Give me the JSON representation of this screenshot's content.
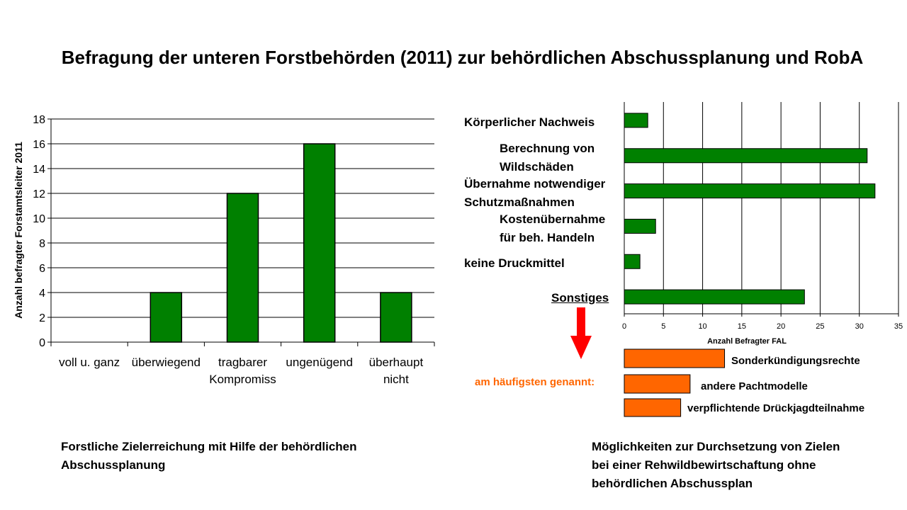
{
  "title": "Befragung der unteren Forstbehörden (2011) zur behördlichen Abschussplanung und RobA",
  "chart_data": [
    {
      "type": "bar",
      "title": "",
      "ylabel": "Anzahl befragter Forstamtsleiter 2011",
      "xlabel": "",
      "ylim": [
        0,
        18
      ],
      "yticks": [
        "0",
        "2",
        "4",
        "6",
        "8",
        "10",
        "12",
        "14",
        "16",
        "18"
      ],
      "categories": [
        [
          "voll u. ganz"
        ],
        [
          "überwiegend"
        ],
        [
          "tragbarer",
          "Kompromiss"
        ],
        [
          "ungenügend"
        ],
        [
          "überhaupt",
          "nicht"
        ]
      ],
      "values": [
        0,
        4,
        12,
        16,
        4
      ],
      "grid": true,
      "color": "#008000",
      "caption": [
        "Forstliche Zielerreichung  mit Hilfe der behördlichen",
        "Abschussplanung"
      ]
    },
    {
      "type": "bar",
      "orientation": "horizontal",
      "title": "",
      "xlabel": "Anzahl Befragter FAL",
      "xlim": [
        0,
        35
      ],
      "xticks": [
        "0",
        "5",
        "10",
        "15",
        "20",
        "25",
        "30",
        "35"
      ],
      "categories": [
        [
          "Körperlicher  Nachweis"
        ],
        [
          "Berechnung von",
          "Wildschäden"
        ],
        [
          "Übernahme  notwendiger",
          "Schutzmaßnahmen"
        ],
        [
          "Kostenübernahme",
          "für beh. Handeln"
        ],
        [
          "keine Druckmittel"
        ],
        [
          "Sonstiges"
        ]
      ],
      "values": [
        3,
        31,
        32,
        4,
        2,
        23
      ],
      "grid": true,
      "color": "#008000",
      "breakdown": {
        "label": "am häufigsten genannt:",
        "color": "#ff6600",
        "categories": [
          "Sonderkündigungsrechte",
          "andere Pachtmodelle",
          "verpflichtende Drückjagdteilnahme"
        ],
        "values": [
          12.8,
          8.4,
          7.2
        ]
      },
      "caption": [
        "Möglichkeiten  zur Durchsetzung  von Zielen",
        "bei einer Rehwildbewirtschaftung  ohne",
        "behördlichen  Abschussplan"
      ]
    }
  ]
}
